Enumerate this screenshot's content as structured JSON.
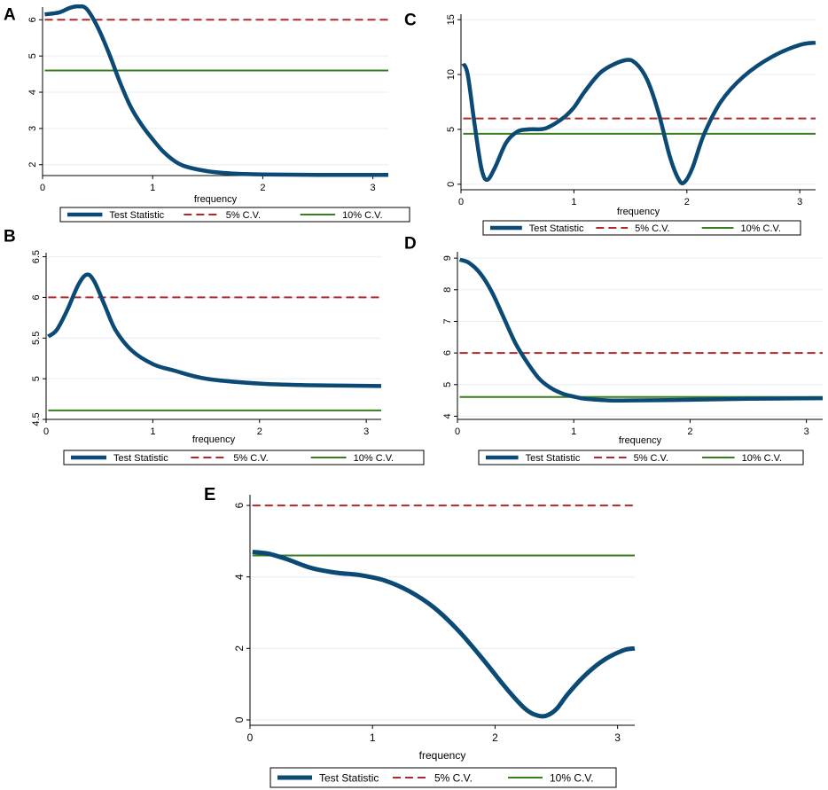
{
  "colors": {
    "stat": "#0b4a75",
    "cv5": "#b0282c",
    "cv10": "#3a7d1f",
    "axis": "#000000",
    "grid": "#e6eef2",
    "text": "#000000"
  },
  "chart_data": [
    {
      "type": "line",
      "panel_label": "A",
      "xlabel": "frequency",
      "ylabel": "",
      "xlim": [
        0,
        3.14
      ],
      "ylim": [
        1.7,
        6.35
      ],
      "xticks": [
        "0",
        "1",
        "2",
        "3"
      ],
      "yticks": [
        "2",
        "3",
        "4",
        "5",
        "6"
      ],
      "xtick_values": [
        0,
        1,
        2,
        3
      ],
      "ytick_values": [
        2,
        3,
        4,
        5,
        6
      ],
      "grid": true,
      "legend": [
        "Test Statistic",
        "5% C.V.",
        "10% C.V."
      ],
      "series": [
        {
          "name": "Test Statistic",
          "style": "solid-thick",
          "x": [
            0.02,
            0.15,
            0.25,
            0.33,
            0.4,
            0.5,
            0.6,
            0.7,
            0.8,
            0.9,
            1.0,
            1.1,
            1.2,
            1.3,
            1.5,
            1.7,
            2.0,
            2.5,
            3.14
          ],
          "y": [
            6.15,
            6.2,
            6.33,
            6.37,
            6.3,
            5.8,
            5.1,
            4.3,
            3.6,
            3.1,
            2.7,
            2.35,
            2.1,
            1.95,
            1.82,
            1.76,
            1.73,
            1.72,
            1.72
          ]
        },
        {
          "name": "5% C.V.",
          "style": "dashed",
          "x": [
            0.02,
            3.14
          ],
          "y": [
            6.0,
            6.0
          ]
        },
        {
          "name": "10% C.V.",
          "style": "solid",
          "x": [
            0.02,
            3.14
          ],
          "y": [
            4.6,
            4.6
          ]
        }
      ]
    },
    {
      "type": "line",
      "panel_label": "B",
      "xlabel": "frequency",
      "ylabel": "",
      "xlim": [
        0,
        3.14
      ],
      "ylim": [
        4.5,
        6.55
      ],
      "xticks": [
        "0",
        "1",
        "2",
        "3"
      ],
      "yticks": [
        "4.5",
        "5",
        "5.5",
        "6",
        "6.5"
      ],
      "xtick_values": [
        0,
        1,
        2,
        3
      ],
      "ytick_values": [
        4.5,
        5,
        5.5,
        6,
        6.5
      ],
      "grid": true,
      "legend": [
        "Test Statistic",
        "5% C.V.",
        "10% C.V."
      ],
      "series": [
        {
          "name": "Test Statistic",
          "style": "solid-thick",
          "x": [
            0.02,
            0.1,
            0.2,
            0.3,
            0.38,
            0.45,
            0.55,
            0.65,
            0.8,
            1.0,
            1.2,
            1.5,
            2.0,
            2.5,
            3.14
          ],
          "y": [
            5.52,
            5.6,
            5.85,
            6.15,
            6.28,
            6.2,
            5.9,
            5.6,
            5.35,
            5.18,
            5.1,
            5.0,
            4.94,
            4.92,
            4.91
          ]
        },
        {
          "name": "5% C.V.",
          "style": "dashed",
          "x": [
            0.02,
            3.14
          ],
          "y": [
            6.0,
            6.0
          ]
        },
        {
          "name": "10% C.V.",
          "style": "solid",
          "x": [
            0.02,
            3.14
          ],
          "y": [
            4.61,
            4.61
          ]
        }
      ]
    },
    {
      "type": "line",
      "panel_label": "C",
      "xlabel": "frequency",
      "ylabel": "",
      "xlim": [
        0,
        3.14
      ],
      "ylim": [
        -0.5,
        15.5
      ],
      "xticks": [
        "0",
        "1",
        "2",
        "3"
      ],
      "yticks": [
        "0",
        "5",
        "10",
        "15"
      ],
      "xtick_values": [
        0,
        1,
        2,
        3
      ],
      "ytick_values": [
        0,
        5,
        10,
        15
      ],
      "grid": true,
      "legend": [
        "Test Statistic",
        "5% C.V.",
        "10% C.V."
      ],
      "series": [
        {
          "name": "Test Statistic",
          "style": "solid-thick",
          "x": [
            0.02,
            0.06,
            0.12,
            0.18,
            0.23,
            0.3,
            0.4,
            0.5,
            0.6,
            0.75,
            0.9,
            1.0,
            1.1,
            1.25,
            1.45,
            1.55,
            1.65,
            1.75,
            1.85,
            1.93,
            1.98,
            2.05,
            2.15,
            2.3,
            2.5,
            2.75,
            3.0,
            3.14
          ],
          "y": [
            11.0,
            10.0,
            5.5,
            1.5,
            0.4,
            1.5,
            3.8,
            4.8,
            5.0,
            5.1,
            6.0,
            7.0,
            8.5,
            10.3,
            11.3,
            11.0,
            9.5,
            6.5,
            2.5,
            0.4,
            0.2,
            1.5,
            4.5,
            7.5,
            9.8,
            11.6,
            12.7,
            12.9
          ]
        },
        {
          "name": "5% C.V.",
          "style": "dashed",
          "x": [
            0.02,
            3.14
          ],
          "y": [
            6.0,
            6.0
          ]
        },
        {
          "name": "10% C.V.",
          "style": "solid",
          "x": [
            0.02,
            3.14
          ],
          "y": [
            4.6,
            4.6
          ]
        }
      ]
    },
    {
      "type": "line",
      "panel_label": "D",
      "xlabel": "frequency",
      "ylabel": "",
      "xlim": [
        0,
        3.14
      ],
      "ylim": [
        3.9,
        9.2
      ],
      "xticks": [
        "0",
        "1",
        "2",
        "3"
      ],
      "yticks": [
        "4",
        "5",
        "6",
        "7",
        "8",
        "9"
      ],
      "xtick_values": [
        0,
        1,
        2,
        3
      ],
      "ytick_values": [
        4,
        5,
        6,
        7,
        8,
        9
      ],
      "grid": true,
      "legend": [
        "Test Statistic",
        "5% C.V.",
        "10% C.V."
      ],
      "series": [
        {
          "name": "Test Statistic",
          "style": "solid-thick",
          "x": [
            0.02,
            0.1,
            0.2,
            0.3,
            0.4,
            0.5,
            0.6,
            0.7,
            0.8,
            0.9,
            1.0,
            1.1,
            1.3,
            1.5,
            2.0,
            2.5,
            3.14
          ],
          "y": [
            8.95,
            8.85,
            8.5,
            7.9,
            7.1,
            6.3,
            5.7,
            5.2,
            4.9,
            4.72,
            4.62,
            4.55,
            4.5,
            4.5,
            4.52,
            4.55,
            4.57
          ]
        },
        {
          "name": "5% C.V.",
          "style": "dashed",
          "x": [
            0.02,
            3.14
          ],
          "y": [
            6.0,
            6.0
          ]
        },
        {
          "name": "10% C.V.",
          "style": "solid",
          "x": [
            0.02,
            3.14
          ],
          "y": [
            4.61,
            4.61
          ]
        }
      ]
    },
    {
      "type": "line",
      "panel_label": "E",
      "xlabel": "frequency",
      "ylabel": "",
      "xlim": [
        0,
        3.14
      ],
      "ylim": [
        -0.15,
        6.3
      ],
      "xticks": [
        "0",
        "1",
        "2",
        "3"
      ],
      "yticks": [
        "0",
        "2",
        "4",
        "6"
      ],
      "xtick_values": [
        0,
        1,
        2,
        3
      ],
      "ytick_values": [
        0,
        2,
        4,
        6
      ],
      "grid": true,
      "legend": [
        "Test Statistic",
        "5% C.V.",
        "10% C.V."
      ],
      "series": [
        {
          "name": "Test Statistic",
          "style": "solid-thick",
          "x": [
            0.02,
            0.15,
            0.3,
            0.5,
            0.7,
            0.9,
            1.1,
            1.3,
            1.5,
            1.7,
            1.9,
            2.1,
            2.25,
            2.35,
            2.42,
            2.5,
            2.6,
            2.75,
            2.9,
            3.05,
            3.14
          ],
          "y": [
            4.7,
            4.65,
            4.5,
            4.25,
            4.12,
            4.05,
            3.9,
            3.6,
            3.15,
            2.5,
            1.7,
            0.85,
            0.3,
            0.12,
            0.12,
            0.3,
            0.75,
            1.3,
            1.7,
            1.95,
            2.0
          ]
        },
        {
          "name": "5% C.V.",
          "style": "dashed",
          "x": [
            0.02,
            3.14
          ],
          "y": [
            6.0,
            6.0
          ]
        },
        {
          "name": "10% C.V.",
          "style": "solid",
          "x": [
            0.02,
            3.14
          ],
          "y": [
            4.6,
            4.6
          ]
        }
      ]
    }
  ]
}
